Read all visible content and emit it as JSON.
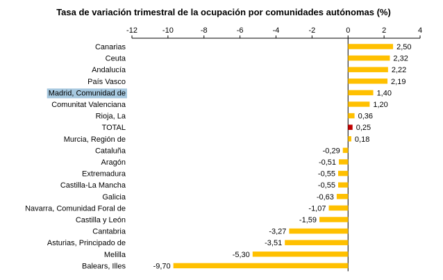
{
  "chart_data": {
    "type": "bar",
    "orientation": "horizontal",
    "title": "Tasa de variación trimestral de la ocupación por comunidades autónomas (%)",
    "xlabel": "",
    "ylabel": "",
    "xlim": [
      -12,
      4
    ],
    "xticks": [
      "-12",
      "-10",
      "-8",
      "-6",
      "-4",
      "-2",
      "0",
      "2",
      "4"
    ],
    "axis_position": "top",
    "grid": false,
    "legend": "none",
    "bar_color": "#FFC000",
    "highlight_bar_color": "#C00000",
    "highlight_label_bg": "#A6C8DF",
    "categories": [
      "Canarias",
      "Ceuta",
      "Andalucía",
      "País Vasco",
      "Madrid, Comunidad de",
      "Comunitat Valenciana",
      "Rioja, La",
      "TOTAL",
      "Murcia, Región de",
      "Cataluña",
      "Aragón",
      "Extremadura",
      "Castilla-La Mancha",
      "Galicia",
      "Navarra, Comunidad Foral de",
      "Castilla y León",
      "Cantabria",
      "Asturias, Principado de",
      "Melilla",
      "Balears, Illes"
    ],
    "values": [
      2.5,
      2.32,
      2.22,
      2.19,
      1.4,
      1.2,
      0.36,
      0.25,
      0.18,
      -0.29,
      -0.51,
      -0.55,
      -0.55,
      -0.63,
      -1.07,
      -1.59,
      -3.27,
      -3.51,
      -5.3,
      -9.7
    ],
    "value_labels": [
      "2,50",
      "2,32",
      "2,22",
      "2,19",
      "1,40",
      "1,20",
      "0,36",
      "0,25",
      "0,18",
      "-0,29",
      "-0,51",
      "-0,55",
      "-0,55",
      "-0,63",
      "-1,07",
      "-1,59",
      "-3,27",
      "-3,51",
      "-5,30",
      "-9,70"
    ],
    "highlighted_bar": "TOTAL",
    "highlighted_label": "Madrid, Comunidad de"
  }
}
